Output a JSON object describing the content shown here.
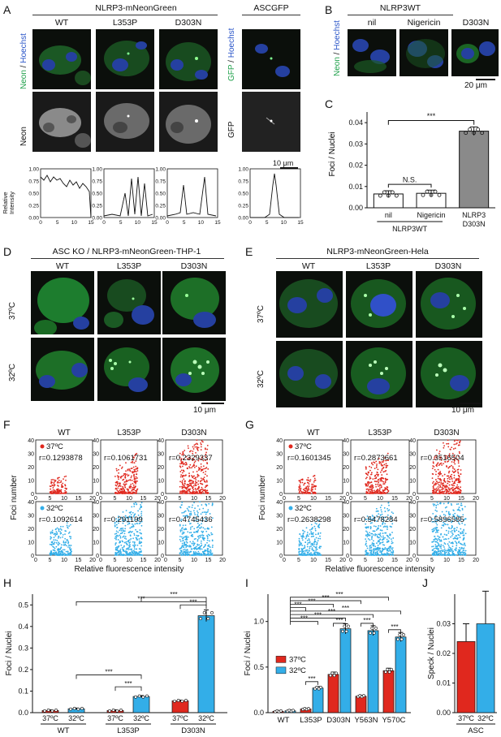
{
  "panels": [
    "A",
    "B",
    "C",
    "D",
    "E",
    "F",
    "G",
    "H",
    "I",
    "J"
  ],
  "A": {
    "title": "NLRP3-mNeonGreen",
    "cols": [
      "WT",
      "L353P",
      "D303N"
    ],
    "asc_title": "ASCGFP",
    "row1_label_green": "Neon",
    "row1_label_sep": " / ",
    "row1_label_blue": "Hoechst",
    "asc_row1_label_green": "GFP",
    "asc_row1_label_blue": "Hoechst",
    "row2_label": "Neon",
    "asc_row2_label": "GFP",
    "scale": "10 μm",
    "ylabel": "Relative\nIntensity",
    "xlabel": "( μm)"
  },
  "B": {
    "title": "NLRP3WT",
    "cols": [
      "nil",
      "Nigericin",
      "D303N"
    ],
    "row_label_green": "Neon",
    "row_label_blue": "Hoechst",
    "scale": "20 μm"
  },
  "C": {
    "ylabel": "Foci / Nuclei",
    "group_label": "NLRP3WT",
    "sig1": "N.S.",
    "sig2": "***",
    "chart_data": {
      "type": "bar",
      "categories": [
        "nil",
        "Nigericin",
        "NLRP3\nD303N"
      ],
      "values": [
        0.0065,
        0.0068,
        0.036
      ],
      "ylim": [
        0,
        0.045
      ],
      "yticks": [
        "0.00",
        "0.01",
        "0.02",
        "0.03",
        "0.04"
      ],
      "colors": [
        "#ffffff",
        "#ffffff",
        "#8a8a8a"
      ]
    }
  },
  "D": {
    "title": "ASC KO / NLRP3-mNeonGreen-THP-1",
    "cols": [
      "WT",
      "L353P",
      "D303N"
    ],
    "rows": [
      "37ºC",
      "32ºC"
    ],
    "scale": "10 μm"
  },
  "G": {
    "title": "NLRP3-mNeonGreen-Hela",
    "cols": [
      "WT",
      "L353P",
      "D303N"
    ],
    "rows": [
      "37ºC",
      "32ºC"
    ],
    "scale": "10 μm"
  },
  "E": {
    "cols": [
      "WT",
      "L353P",
      "D303N"
    ],
    "ylabel": "Foci number",
    "xlabel": "Relative fluorescence intensity",
    "legend37": "37ºC",
    "legend32": "32ºC",
    "r37": [
      "r=0.1293878",
      "r=0.1061731",
      "r=0.2329337"
    ],
    "r32": [
      "r=0.1092614",
      "r=0.291199",
      "r=0.4745436"
    ],
    "yticks": [
      "0",
      "10",
      "20",
      "30",
      "40"
    ],
    "xticks": [
      "0",
      "5",
      "10",
      "15",
      "20"
    ]
  },
  "H": {
    "cols": [
      "WT",
      "L353P",
      "D303N"
    ],
    "ylabel": "Foci number",
    "xlabel": "Relative fluorescence intensity",
    "legend37": "37ºC",
    "legend32": "32ºC",
    "r37": [
      "r=0.1601345",
      "r=0.2873661",
      "r=0.3516504"
    ],
    "r32": [
      "r=0.2638298",
      "r=0.5478284",
      "r=0.5896585"
    ],
    "yticks": [
      "0",
      "10",
      "20",
      "30",
      "40"
    ],
    "xticks": [
      "0",
      "5",
      "10",
      "15",
      "20"
    ]
  },
  "F": {
    "ylabel": "Foci / Nuclei",
    "temps": [
      "37ºC",
      "32ºC",
      "37ºC",
      "32ºC",
      "37ºC",
      "32ºC"
    ],
    "groups": [
      "WT",
      "L353P",
      "D303N"
    ],
    "sig": "***",
    "chart_data": {
      "type": "bar",
      "categories": [
        "WT",
        "L353P",
        "D303N"
      ],
      "series": [
        {
          "name": "37ºC",
          "values": [
            0.01,
            0.01,
            0.055
          ],
          "color": "#e0281e"
        },
        {
          "name": "32ºC",
          "values": [
            0.018,
            0.075,
            0.45
          ],
          "color": "#33aee8"
        }
      ],
      "ylim": [
        0,
        0.55
      ],
      "yticks": [
        "0.0",
        "0.1",
        "0.2",
        "0.3",
        "0.4",
        "0.5"
      ]
    }
  },
  "I": {
    "ylabel": "Foci / Nuclei",
    "sig": "***",
    "chart_data": {
      "type": "bar",
      "categories": [
        "WT",
        "L353P",
        "D303N",
        "Y563N",
        "Y570C"
      ],
      "series": [
        {
          "name": "37ºC",
          "values": [
            0.015,
            0.04,
            0.42,
            0.18,
            0.46
          ],
          "color": "#e0281e"
        },
        {
          "name": "32ºC",
          "values": [
            0.02,
            0.27,
            0.92,
            0.9,
            0.83
          ],
          "color": "#33aee8"
        }
      ],
      "ylim": [
        0,
        1.3
      ],
      "yticks": [
        "0.0",
        "0.5",
        "1.0"
      ]
    }
  },
  "J": {
    "ylabel": "Speck / Nuclei",
    "group": "ASC",
    "chart_data": {
      "type": "bar",
      "categories": [
        "37ºC",
        "32ºC"
      ],
      "values": [
        0.024,
        0.03
      ],
      "errors": [
        0.006,
        0.011
      ],
      "ylim": [
        0,
        0.04
      ],
      "yticks": [
        "0.00",
        "0.01",
        "0.02",
        "0.03"
      ],
      "colors": [
        "#e0281e",
        "#33aee8"
      ]
    }
  }
}
